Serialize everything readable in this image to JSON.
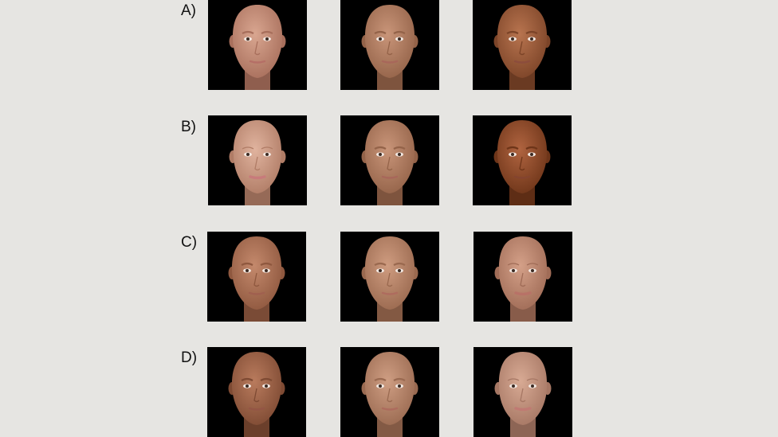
{
  "rows": [
    {
      "label": "A)",
      "faces": [
        {
          "skin": "#d9a690",
          "shade": "#a86f5c",
          "lip": "#b56f66",
          "sex": "male"
        },
        {
          "skin": "#c99579",
          "shade": "#946349",
          "lip": "#a8675a",
          "sex": "male"
        },
        {
          "skin": "#b8744f",
          "shade": "#7c4428",
          "lip": "#8c4d3c",
          "sex": "male"
        }
      ]
    },
    {
      "label": "B)",
      "faces": [
        {
          "skin": "#e0b39e",
          "shade": "#b07c66",
          "lip": "#c87b7b",
          "sex": "female"
        },
        {
          "skin": "#c99579",
          "shade": "#946349",
          "lip": "#a8675a",
          "sex": "male"
        },
        {
          "skin": "#b06440",
          "shade": "#6e3519",
          "lip": "#84442f",
          "sex": "male"
        }
      ]
    },
    {
      "label": "C)",
      "faces": [
        {
          "skin": "#c4896c",
          "shade": "#8f583f",
          "lip": "#a0604f",
          "sex": "male"
        },
        {
          "skin": "#cf9c80",
          "shade": "#9a694f",
          "lip": "#ae6c5e",
          "sex": "male"
        },
        {
          "skin": "#d4a088",
          "shade": "#a06c57",
          "lip": "#b87267",
          "sex": "female"
        }
      ]
    },
    {
      "label": "D)",
      "faces": [
        {
          "skin": "#b97b5d",
          "shade": "#7e4a33",
          "lip": "#945545",
          "sex": "male"
        },
        {
          "skin": "#cf9e83",
          "shade": "#9a6a51",
          "lip": "#ad6b5d",
          "sex": "male"
        },
        {
          "skin": "#d8aa94",
          "shade": "#a67764",
          "lip": "#c07a73",
          "sex": "female"
        }
      ]
    }
  ]
}
